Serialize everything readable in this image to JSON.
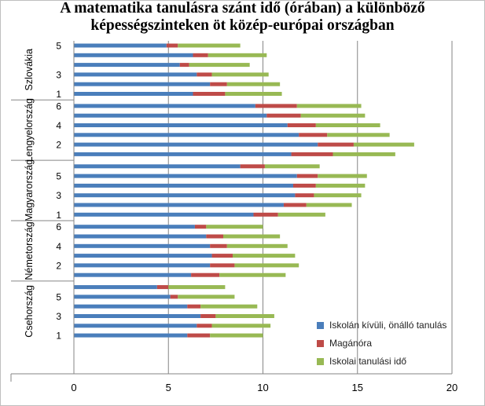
{
  "chart_data": {
    "type": "bar",
    "orientation": "horizontal",
    "stacked": true,
    "title_line1": "A matematika tanulásra szánt idő (órában) a különböző",
    "title_line2": "képességszinteken öt közép-európai országban",
    "xlim": [
      0,
      20
    ],
    "xticks": [
      "0",
      "5",
      "10",
      "15",
      "20"
    ],
    "grid": true,
    "legend_position": "right",
    "series": [
      {
        "name": "Iskolán kívüli, önálló tanulás",
        "color": "#4a7ebb"
      },
      {
        "name": "Magánóra",
        "color": "#be4b48"
      },
      {
        "name": "Iskolai tanulási idő",
        "color": "#98b954"
      }
    ],
    "groups": [
      {
        "country": "Szlovákia",
        "rows": [
          {
            "label": "5",
            "values": [
              4.9,
              0.6,
              3.3
            ]
          },
          {
            "label": "",
            "values": [
              6.3,
              0.8,
              3.1
            ]
          },
          {
            "label": "",
            "values": [
              5.6,
              0.5,
              3.2
            ]
          },
          {
            "label": "3",
            "values": [
              6.5,
              0.8,
              3.0
            ]
          },
          {
            "label": "",
            "values": [
              7.2,
              0.9,
              2.8
            ]
          },
          {
            "label": "1",
            "values": [
              6.3,
              1.7,
              3.0
            ]
          }
        ]
      },
      {
        "country": "Lengyelország",
        "rows": [
          {
            "label": "6",
            "values": [
              9.6,
              2.2,
              3.4
            ]
          },
          {
            "label": "",
            "values": [
              10.2,
              1.8,
              3.4
            ]
          },
          {
            "label": "4",
            "values": [
              11.3,
              1.5,
              3.4
            ]
          },
          {
            "label": "",
            "values": [
              11.9,
              1.5,
              3.3
            ]
          },
          {
            "label": "2",
            "values": [
              12.9,
              1.9,
              3.2
            ]
          },
          {
            "label": "",
            "values": [
              11.5,
              2.2,
              3.3
            ]
          }
        ]
      },
      {
        "country": "Magyarország",
        "rows": [
          {
            "label": "",
            "values": [
              8.8,
              1.3,
              2.9
            ]
          },
          {
            "label": "5",
            "values": [
              11.8,
              1.1,
              2.6
            ]
          },
          {
            "label": "",
            "values": [
              11.6,
              1.2,
              2.6
            ]
          },
          {
            "label": "3",
            "values": [
              11.7,
              1.0,
              2.5
            ]
          },
          {
            "label": "",
            "values": [
              11.1,
              1.2,
              2.4
            ]
          },
          {
            "label": "1",
            "values": [
              9.5,
              1.3,
              2.5
            ]
          }
        ]
      },
      {
        "country": "Németország",
        "rows": [
          {
            "label": "6",
            "values": [
              6.4,
              0.6,
              3.0
            ]
          },
          {
            "label": "",
            "values": [
              7.0,
              0.9,
              3.0
            ]
          },
          {
            "label": "4",
            "values": [
              7.2,
              0.9,
              3.2
            ]
          },
          {
            "label": "",
            "values": [
              7.3,
              1.1,
              3.3
            ]
          },
          {
            "label": "2",
            "values": [
              7.2,
              1.3,
              3.4
            ]
          },
          {
            "label": "",
            "values": [
              6.2,
              1.5,
              3.5
            ]
          }
        ]
      },
      {
        "country": "Csehország",
        "rows": [
          {
            "label": "",
            "values": [
              4.4,
              0.6,
              3.0
            ]
          },
          {
            "label": "5",
            "values": [
              5.1,
              0.4,
              3.0
            ]
          },
          {
            "label": "",
            "values": [
              6.0,
              0.7,
              3.0
            ]
          },
          {
            "label": "3",
            "values": [
              6.7,
              0.8,
              3.1
            ]
          },
          {
            "label": "",
            "values": [
              6.5,
              0.8,
              3.1
            ]
          },
          {
            "label": "1",
            "values": [
              6.0,
              1.2,
              2.8
            ]
          }
        ]
      }
    ]
  }
}
